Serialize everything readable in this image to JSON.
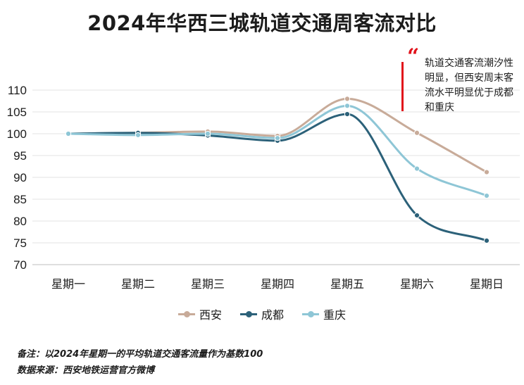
{
  "chart_data": {
    "type": "line",
    "title": "2024年华西三城轨道交通周客流对比",
    "categories": [
      "星期一",
      "星期二",
      "星期三",
      "星期四",
      "星期五",
      "星期六",
      "星期日"
    ],
    "series": [
      {
        "name": "西安",
        "color": "#c8ab99",
        "values": [
          100,
          100.2,
          100.5,
          99.5,
          108,
          100.2,
          91.2
        ]
      },
      {
        "name": "成都",
        "color": "#2c6179",
        "values": [
          100,
          100.2,
          99.6,
          98.4,
          104.5,
          81.3,
          75.5
        ]
      },
      {
        "name": "重庆",
        "color": "#8ec6d6",
        "values": [
          100,
          99.7,
          100,
          99,
          106.4,
          92,
          85.8
        ]
      }
    ],
    "yticks": [
      110,
      105,
      100,
      95,
      90,
      85,
      80,
      75,
      70
    ],
    "ylim": [
      70,
      110
    ],
    "grid": true,
    "legend_position": "bottom",
    "annotation": "轨道交通客流潮汐性明显，但西安周末客流水平明显优于成都和重庆"
  },
  "footnotes": [
    "备注：以2024年星期一的平均轨道交通客流量作为基数100",
    "数据来源：西安地铁运营官方微博"
  ]
}
